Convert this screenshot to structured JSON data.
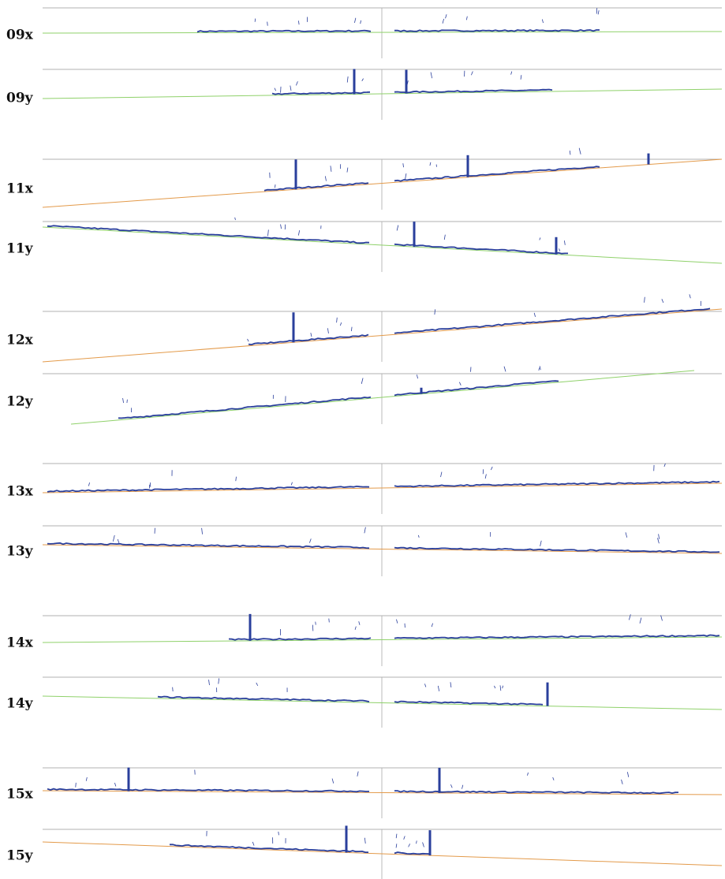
{
  "panels": [
    {
      "label": "09x"
    },
    {
      "label": "09y"
    },
    {
      "label": "11x"
    },
    {
      "label": "11y"
    },
    {
      "label": "12x"
    },
    {
      "label": "12y"
    },
    {
      "label": "13x"
    },
    {
      "label": "13y"
    },
    {
      "label": "14x"
    },
    {
      "label": "14y"
    },
    {
      "label": "15x"
    },
    {
      "label": "15y"
    }
  ]
}
